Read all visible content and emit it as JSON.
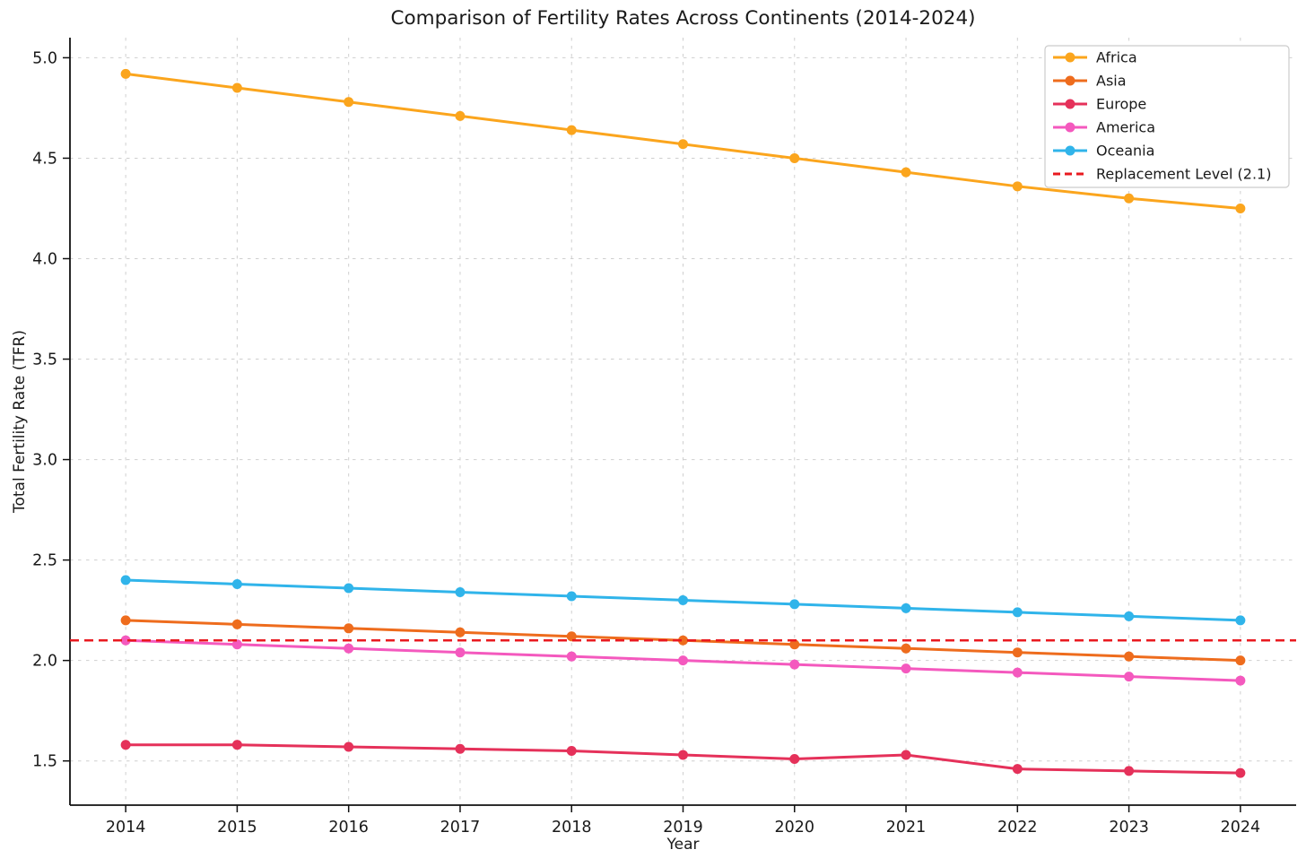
{
  "chart_data": {
    "type": "line",
    "title": "Comparison of Fertility Rates Across Continents (2014-2024)",
    "xlabel": "Year",
    "ylabel": "Total Fertility Rate (TFR)",
    "x": [
      2014,
      2015,
      2016,
      2017,
      2018,
      2019,
      2020,
      2021,
      2022,
      2023,
      2024
    ],
    "xtick_labels": [
      "2014",
      "2015",
      "2016",
      "2017",
      "2018",
      "2019",
      "2020",
      "2021",
      "2022",
      "2023",
      "2024"
    ],
    "xlim": [
      2013.5,
      2024.5
    ],
    "ylim": [
      1.28,
      5.1
    ],
    "yticks": [
      1.5,
      2.0,
      2.5,
      3.0,
      3.5,
      4.0,
      4.5,
      5.0
    ],
    "ytick_labels": [
      "1.5",
      "2.0",
      "2.5",
      "3.0",
      "3.5",
      "4.0",
      "4.5",
      "5.0"
    ],
    "grid": true,
    "grid_style": "dashed",
    "legend_position": "upper right",
    "series": [
      {
        "name": "Africa",
        "color": "#FBA51D",
        "values": [
          4.92,
          4.85,
          4.78,
          4.71,
          4.64,
          4.57,
          4.5,
          4.43,
          4.36,
          4.3,
          4.25
        ]
      },
      {
        "name": "Asia",
        "color": "#EE6C1D",
        "values": [
          2.2,
          2.18,
          2.16,
          2.14,
          2.12,
          2.1,
          2.08,
          2.06,
          2.04,
          2.02,
          2.0
        ]
      },
      {
        "name": "Europe",
        "color": "#E5315A",
        "values": [
          1.58,
          1.58,
          1.57,
          1.56,
          1.55,
          1.53,
          1.51,
          1.53,
          1.46,
          1.45,
          1.44
        ]
      },
      {
        "name": "America",
        "color": "#F459BE",
        "values": [
          2.1,
          2.08,
          2.06,
          2.04,
          2.02,
          2.0,
          1.98,
          1.96,
          1.94,
          1.92,
          1.9
        ]
      },
      {
        "name": "Oceania",
        "color": "#30B4EA",
        "values": [
          2.4,
          2.38,
          2.36,
          2.34,
          2.32,
          2.3,
          2.28,
          2.26,
          2.24,
          2.22,
          2.2
        ]
      }
    ],
    "reference_line": {
      "label": "Replacement Level (2.1)",
      "value": 2.1,
      "color": "#E9191F",
      "style": "dashed"
    },
    "colors": {
      "background": "#ffffff",
      "grid": "#cfcfcf",
      "spine": "#111111",
      "text": "#1a1a1a",
      "legend_border": "#cccccc",
      "legend_background": "#ffffff"
    }
  }
}
